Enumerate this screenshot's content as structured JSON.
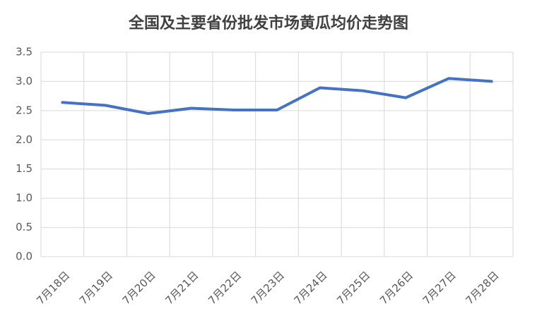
{
  "chart_data": {
    "type": "line",
    "title": "全国及主要省份批发市场黄瓜均价走势图",
    "categories": [
      "7月18日",
      "7月19日",
      "7月20日",
      "7月21日",
      "7月22日",
      "7月23日",
      "7月24日",
      "7月25日",
      "7月26日",
      "7月27日",
      "7月28日"
    ],
    "series": [
      {
        "name": "黄瓜均价",
        "color": "#4472c4",
        "values": [
          2.64,
          2.59,
          2.45,
          2.54,
          2.51,
          2.51,
          2.89,
          2.84,
          2.72,
          3.05,
          3.0
        ]
      }
    ],
    "ylim": [
      0,
      3.5
    ],
    "yticks": [
      {
        "value": 0,
        "label": "0.0"
      },
      0.5,
      {
        "value": 1,
        "label": "1.0"
      },
      1.5,
      {
        "value": 2,
        "label": "2.0"
      },
      2.5,
      {
        "value": 3,
        "label": "3.0"
      },
      3.5
    ],
    "grid": true
  }
}
